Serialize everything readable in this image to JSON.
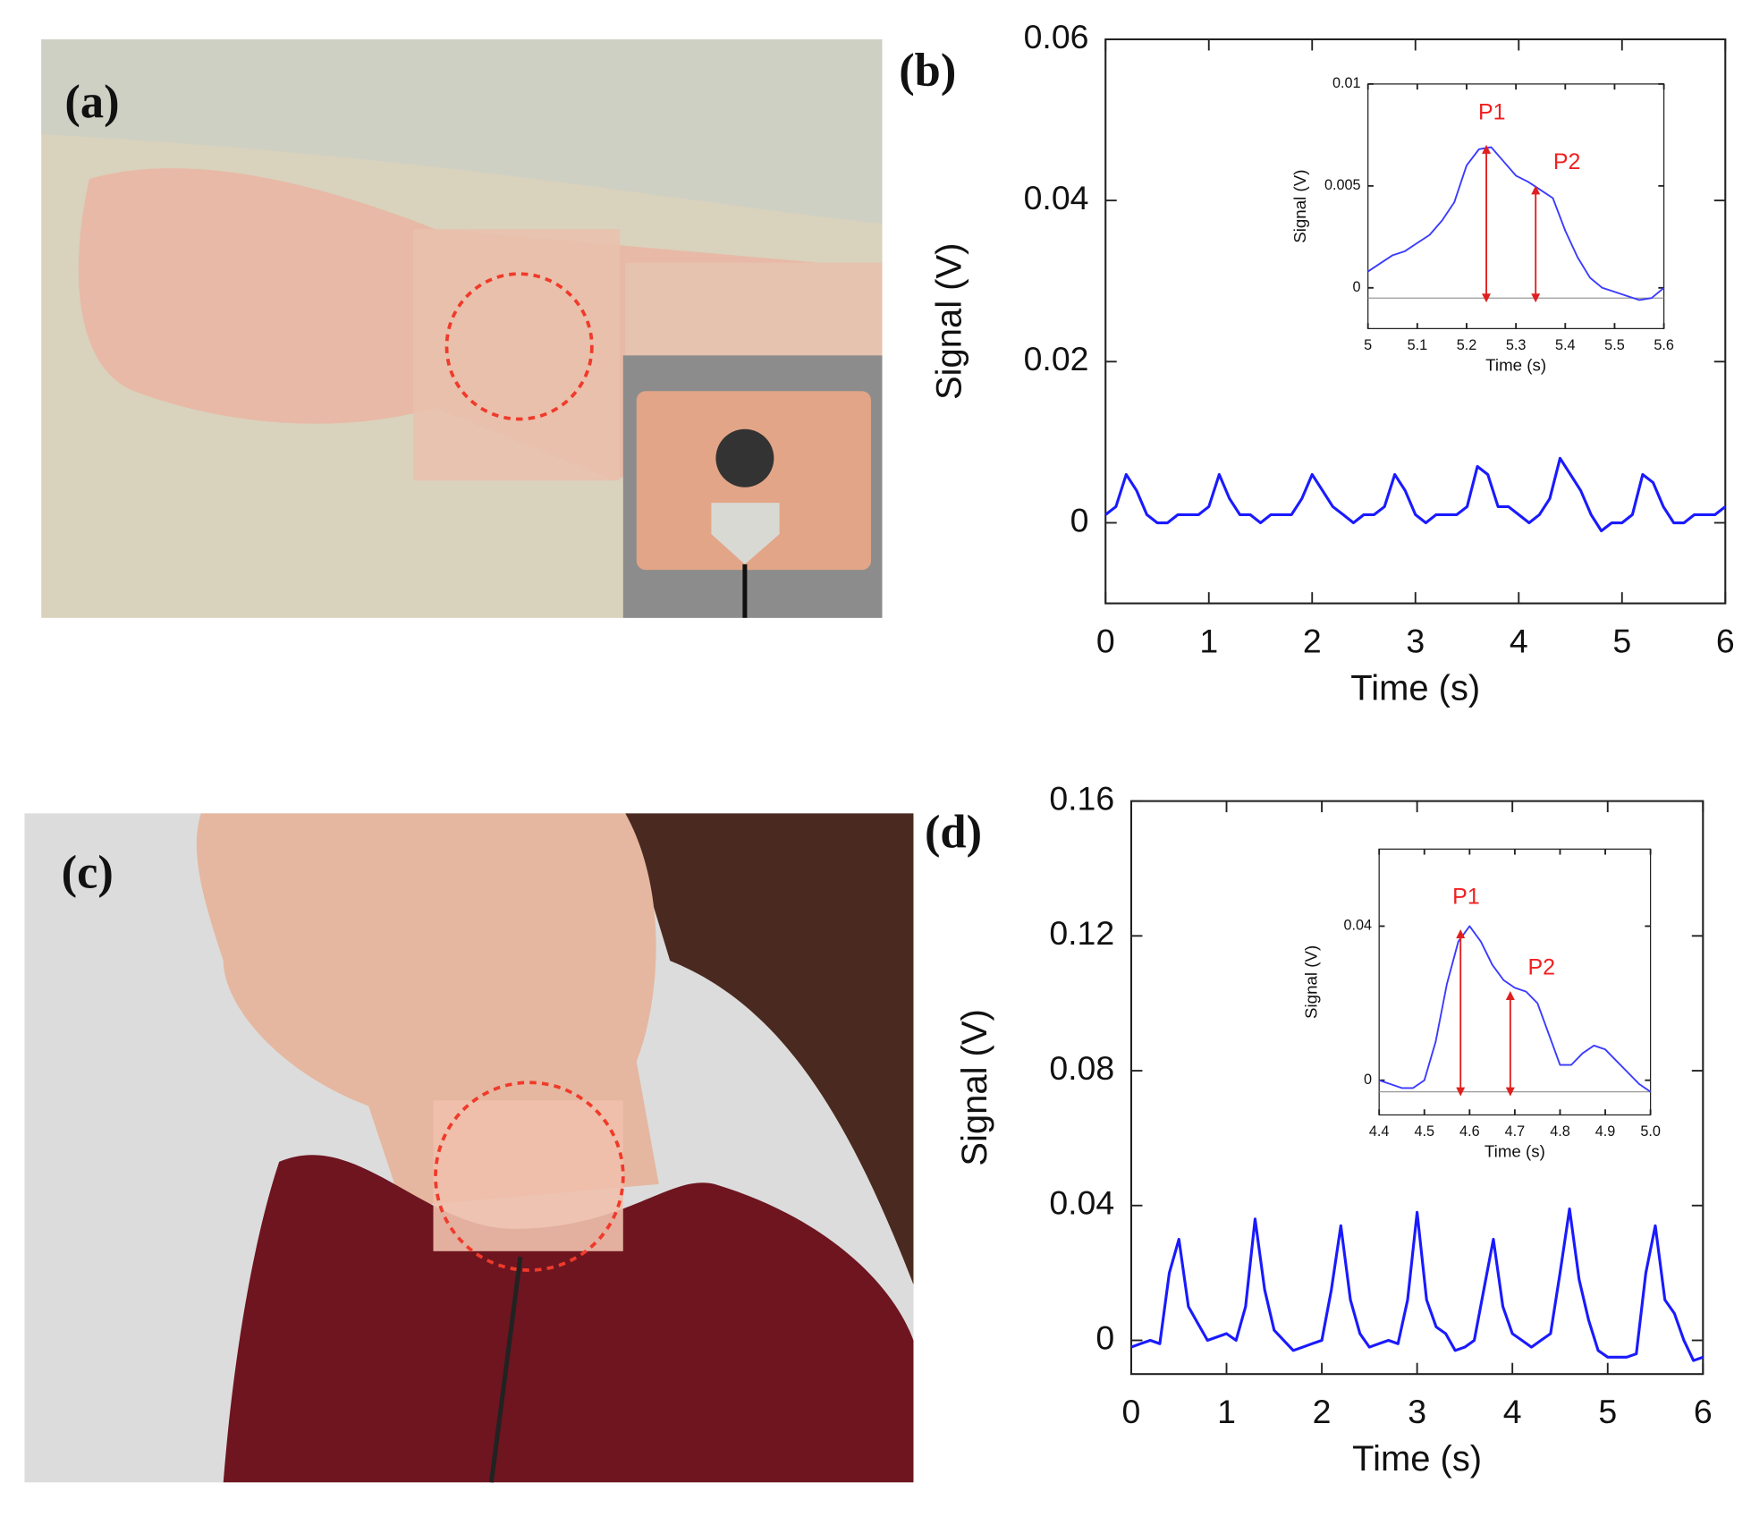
{
  "panels": [
    {
      "label": "(a)"
    },
    {
      "label": "(c)"
    }
  ],
  "chart_data": [
    {
      "type": "line",
      "panel_label": "(b)",
      "xlabel": "Time (s)",
      "ylabel": "Signal (V)",
      "xlim": [
        0,
        6
      ],
      "ylim": [
        -0.01,
        0.06
      ],
      "xticks": [
        0,
        1,
        2,
        3,
        4,
        5,
        6
      ],
      "yticks": [
        0,
        0.02,
        0.04,
        0.06
      ],
      "x": [
        0,
        0.1,
        0.2,
        0.3,
        0.4,
        0.5,
        0.6,
        0.7,
        0.8,
        0.9,
        1,
        1.1,
        1.2,
        1.3,
        1.4,
        1.5,
        1.6,
        1.7,
        1.8,
        1.9,
        2,
        2.1,
        2.2,
        2.3,
        2.4,
        2.5,
        2.6,
        2.7,
        2.8,
        2.9,
        3,
        3.1,
        3.2,
        3.3,
        3.4,
        3.5,
        3.6,
        3.7,
        3.8,
        3.9,
        4,
        4.1,
        4.2,
        4.3,
        4.4,
        4.5,
        4.6,
        4.7,
        4.8,
        4.9,
        5,
        5.1,
        5.2,
        5.3,
        5.4,
        5.5,
        5.6,
        5.7,
        5.8,
        5.9,
        6
      ],
      "series": [
        {
          "color": "#1a1aff",
          "values": [
            0.001,
            0.002,
            0.006,
            0.004,
            0.001,
            0,
            0,
            0.001,
            0.001,
            0.001,
            0.002,
            0.006,
            0.003,
            0.001,
            0.001,
            0,
            0.001,
            0.001,
            0.001,
            0.003,
            0.006,
            0.004,
            0.002,
            0.001,
            0,
            0.001,
            0.001,
            0.002,
            0.006,
            0.004,
            0.001,
            0,
            0.001,
            0.001,
            0.001,
            0.002,
            0.007,
            0.006,
            0.002,
            0.002,
            0.001,
            0,
            0.001,
            0.003,
            0.008,
            0.006,
            0.004,
            0.001,
            -0.001,
            0,
            0,
            0.001,
            0.006,
            0.005,
            0.002,
            0,
            0,
            0.001,
            0.001,
            0.001,
            0.002
          ]
        }
      ]
    },
    {
      "type": "line",
      "xlabel": "Time (s)",
      "ylabel": "Signal (V)",
      "xlim": [
        5,
        5.6
      ],
      "ylim": [
        -0.002,
        0.01
      ],
      "xticks": [
        5,
        5.1,
        5.2,
        5.3,
        5.4,
        5.5,
        5.6
      ],
      "yticks": [
        0,
        0.005,
        0.01
      ],
      "hline": -0.0005,
      "x": [
        5,
        5.025,
        5.05,
        5.075,
        5.1,
        5.125,
        5.15,
        5.175,
        5.2,
        5.225,
        5.25,
        5.275,
        5.3,
        5.325,
        5.35,
        5.375,
        5.4,
        5.425,
        5.45,
        5.475,
        5.5,
        5.525,
        5.55,
        5.575,
        5.6
      ],
      "series": [
        {
          "color": "#3a3aff",
          "values": [
            0.0008,
            0.0012,
            0.0016,
            0.0018,
            0.0022,
            0.0026,
            0.0033,
            0.0042,
            0.006,
            0.0068,
            0.0069,
            0.0062,
            0.0055,
            0.0052,
            0.0048,
            0.0044,
            0.0028,
            0.0015,
            0.0005,
            0,
            -0.0002,
            -0.0004,
            -0.0006,
            -0.0005,
            0
          ]
        }
      ],
      "annotations": [
        {
          "text": "P1",
          "x": 5.24,
          "y": 0.0068
        },
        {
          "text": "P2",
          "x": 5.34,
          "y": 0.0048
        }
      ]
    },
    {
      "type": "line",
      "panel_label": "(d)",
      "xlabel": "Time (s)",
      "ylabel": "Signal (V)",
      "xlim": [
        0,
        6
      ],
      "ylim": [
        -0.01,
        0.16
      ],
      "xticks": [
        0,
        1,
        2,
        3,
        4,
        5,
        6
      ],
      "yticks": [
        0,
        0.04,
        0.08,
        0.12,
        0.16
      ],
      "x": [
        0,
        0.1,
        0.2,
        0.3,
        0.4,
        0.5,
        0.6,
        0.7,
        0.8,
        0.9,
        1,
        1.1,
        1.2,
        1.3,
        1.4,
        1.5,
        1.6,
        1.7,
        1.8,
        1.9,
        2,
        2.1,
        2.2,
        2.3,
        2.4,
        2.5,
        2.6,
        2.7,
        2.8,
        2.9,
        3,
        3.1,
        3.2,
        3.3,
        3.4,
        3.5,
        3.6,
        3.7,
        3.8,
        3.9,
        4,
        4.1,
        4.2,
        4.3,
        4.4,
        4.5,
        4.6,
        4.7,
        4.8,
        4.9,
        5,
        5.1,
        5.2,
        5.3,
        5.4,
        5.5,
        5.6,
        5.7,
        5.8,
        5.9,
        6
      ],
      "series": [
        {
          "color": "#1a1aff",
          "values": [
            -0.002,
            -0.001,
            0,
            -0.001,
            0.02,
            0.03,
            0.01,
            0.005,
            0,
            0.001,
            0.002,
            0,
            0.01,
            0.036,
            0.015,
            0.003,
            0,
            -0.003,
            -0.002,
            -0.001,
            0,
            0.015,
            0.034,
            0.012,
            0.002,
            -0.002,
            -0.001,
            0,
            -0.001,
            0.012,
            0.038,
            0.012,
            0.004,
            0.002,
            -0.003,
            -0.002,
            0,
            0.015,
            0.03,
            0.01,
            0.002,
            0,
            -0.002,
            0,
            0.002,
            0.02,
            0.039,
            0.018,
            0.006,
            -0.003,
            -0.005,
            -0.005,
            -0.005,
            -0.004,
            0.02,
            0.034,
            0.012,
            0.008,
            0,
            -0.006,
            -0.005
          ]
        }
      ]
    },
    {
      "type": "line",
      "xlabel": "Time (s)",
      "ylabel": "Signal (V)",
      "xlim": [
        4.4,
        5
      ],
      "ylim": [
        -0.009,
        0.06
      ],
      "xticks": [
        4.4,
        4.5,
        4.6,
        4.7,
        4.8,
        4.9,
        {
          "value": 5,
          "label": "5.0"
        }
      ],
      "yticks": [
        0,
        0.04
      ],
      "hline": -0.003,
      "x": [
        4.4,
        4.425,
        4.45,
        4.475,
        4.5,
        4.525,
        4.55,
        4.575,
        4.6,
        4.625,
        4.65,
        4.675,
        4.7,
        4.725,
        4.75,
        4.775,
        4.8,
        4.825,
        4.85,
        4.875,
        4.9,
        4.925,
        4.95,
        4.975,
        5
      ],
      "series": [
        {
          "color": "#3a3aff",
          "values": [
            0,
            -0.001,
            -0.002,
            -0.002,
            0,
            0.01,
            0.025,
            0.036,
            0.04,
            0.036,
            0.03,
            0.026,
            0.024,
            0.023,
            0.02,
            0.012,
            0.004,
            0.004,
            0.007,
            0.009,
            0.008,
            0.005,
            0.002,
            -0.001,
            -0.003
          ]
        }
      ],
      "annotations": [
        {
          "text": "P1",
          "x": 4.58,
          "y": 0.038
        },
        {
          "text": "P2",
          "x": 4.69,
          "y": 0.022
        }
      ]
    }
  ]
}
